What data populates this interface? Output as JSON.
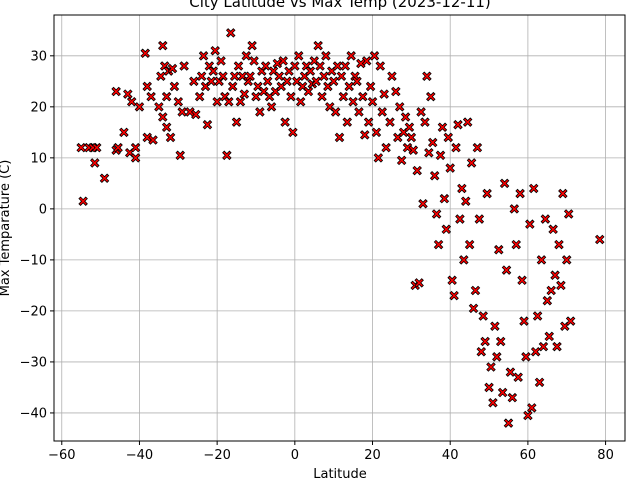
{
  "chart_data": {
    "type": "scatter",
    "title": "City Latitude vs Max Temp (2023-12-11)",
    "xlabel": "Latitude",
    "ylabel": "Max Temparature (C)",
    "xlim": [
      -62,
      85
    ],
    "ylim": [
      -45.5,
      38
    ],
    "xticks": [
      -60,
      -40,
      -20,
      0,
      20,
      40,
      60,
      80
    ],
    "yticks": [
      -40,
      -30,
      -20,
      -10,
      0,
      10,
      20,
      30
    ],
    "grid": true,
    "marker": "X",
    "marker_color": "#ff0000",
    "marker_edge_color": "#000000",
    "series": [
      {
        "points": [
          [
            -55,
            12
          ],
          [
            -54.5,
            1.5
          ],
          [
            -53,
            12
          ],
          [
            -52,
            12
          ],
          [
            -51.5,
            9
          ],
          [
            -51,
            12
          ],
          [
            -49,
            6
          ],
          [
            -46,
            23
          ],
          [
            -46,
            11.5
          ],
          [
            -45.5,
            12
          ],
          [
            -44,
            15
          ],
          [
            -43,
            22.5
          ],
          [
            -42.5,
            11
          ],
          [
            -42,
            21
          ],
          [
            -41,
            10
          ],
          [
            -41,
            12
          ],
          [
            -40,
            20
          ],
          [
            -38.5,
            30.5
          ],
          [
            -38,
            24
          ],
          [
            -38,
            14
          ],
          [
            -37,
            22
          ],
          [
            -36.5,
            13.5
          ],
          [
            -35,
            20
          ],
          [
            -34.5,
            26
          ],
          [
            -34,
            32
          ],
          [
            -34,
            18
          ],
          [
            -33.5,
            28
          ],
          [
            -33,
            16
          ],
          [
            -33,
            22
          ],
          [
            -32.5,
            27
          ],
          [
            -32,
            14
          ],
          [
            -31.5,
            27.5
          ],
          [
            -31,
            24
          ],
          [
            -30,
            21
          ],
          [
            -29.5,
            10.5
          ],
          [
            -29,
            19
          ],
          [
            -28.5,
            28
          ],
          [
            -27,
            19
          ],
          [
            -26,
            25
          ],
          [
            -25.5,
            18.5
          ],
          [
            -24.5,
            22
          ],
          [
            -24,
            26
          ],
          [
            -23.5,
            30
          ],
          [
            -23,
            24
          ],
          [
            -22.5,
            16.5
          ],
          [
            -22,
            28
          ],
          [
            -21.5,
            25
          ],
          [
            -21,
            27
          ],
          [
            -20.5,
            31
          ],
          [
            -20,
            21
          ],
          [
            -19.5,
            25
          ],
          [
            -19,
            29
          ],
          [
            -18.5,
            26
          ],
          [
            -18,
            22
          ],
          [
            -17.5,
            10.5
          ],
          [
            -17,
            21
          ],
          [
            -16.5,
            34.5
          ],
          [
            -16,
            24
          ],
          [
            -15.5,
            26
          ],
          [
            -15,
            17
          ],
          [
            -14.5,
            28
          ],
          [
            -14,
            21
          ],
          [
            -13.5,
            26
          ],
          [
            -13,
            22.5
          ],
          [
            -12.5,
            30
          ],
          [
            -12,
            25
          ],
          [
            -11.5,
            26
          ],
          [
            -11,
            32
          ],
          [
            -10.5,
            29
          ],
          [
            -10,
            22
          ],
          [
            -9.5,
            24
          ],
          [
            -9,
            19
          ],
          [
            -8.5,
            27
          ],
          [
            -8,
            23
          ],
          [
            -7.5,
            28
          ],
          [
            -7,
            25
          ],
          [
            -6.5,
            22
          ],
          [
            -6,
            20
          ],
          [
            -5.5,
            27
          ],
          [
            -5,
            23
          ],
          [
            -4.5,
            28.5
          ],
          [
            -4,
            26
          ],
          [
            -3.5,
            24
          ],
          [
            -3,
            29
          ],
          [
            -2.5,
            17
          ],
          [
            -2,
            25
          ],
          [
            -1.5,
            27
          ],
          [
            -1,
            22
          ],
          [
            -0.5,
            15
          ],
          [
            0,
            28
          ],
          [
            0.5,
            25
          ],
          [
            1,
            30
          ],
          [
            1.5,
            21
          ],
          [
            2,
            24
          ],
          [
            2.5,
            26
          ],
          [
            3,
            28
          ],
          [
            3.5,
            23
          ],
          [
            4,
            27
          ],
          [
            4.5,
            24.5
          ],
          [
            5,
            29
          ],
          [
            5.5,
            25
          ],
          [
            6,
            32
          ],
          [
            6.5,
            28
          ],
          [
            7,
            22
          ],
          [
            7.5,
            26
          ],
          [
            8,
            30
          ],
          [
            8.5,
            24
          ],
          [
            9,
            20
          ],
          [
            9.5,
            27
          ],
          [
            10,
            25
          ],
          [
            10.5,
            19
          ],
          [
            11,
            28
          ],
          [
            11.5,
            14
          ],
          [
            12,
            26
          ],
          [
            12.5,
            22
          ],
          [
            13,
            28
          ],
          [
            13.5,
            17
          ],
          [
            14,
            24
          ],
          [
            14.5,
            30
          ],
          [
            15,
            21
          ],
          [
            15.5,
            26
          ],
          [
            16,
            25
          ],
          [
            16.5,
            19
          ],
          [
            17,
            28.5
          ],
          [
            17.5,
            22
          ],
          [
            18,
            14.5
          ],
          [
            18.5,
            29
          ],
          [
            19,
            17
          ],
          [
            19.5,
            24
          ],
          [
            20,
            21
          ],
          [
            20.5,
            30
          ],
          [
            21,
            15
          ],
          [
            21.5,
            10
          ],
          [
            22,
            28
          ],
          [
            22.5,
            19
          ],
          [
            23,
            22.5
          ],
          [
            23.5,
            12
          ],
          [
            24.5,
            17
          ],
          [
            25,
            26
          ],
          [
            26,
            23
          ],
          [
            26.5,
            14
          ],
          [
            27,
            20
          ],
          [
            27.5,
            9.5
          ],
          [
            28,
            15
          ],
          [
            28.5,
            18
          ],
          [
            29,
            12
          ],
          [
            29.5,
            16
          ],
          [
            30,
            14
          ],
          [
            30.5,
            11.5
          ],
          [
            31,
            -15
          ],
          [
            31.5,
            7.5
          ],
          [
            32,
            -14.5
          ],
          [
            32.5,
            19
          ],
          [
            33,
            1
          ],
          [
            33.5,
            17
          ],
          [
            34,
            26
          ],
          [
            34.5,
            11
          ],
          [
            35,
            22
          ],
          [
            35.5,
            13
          ],
          [
            36,
            6.5
          ],
          [
            36.5,
            -1
          ],
          [
            37,
            -7
          ],
          [
            37.5,
            10.5
          ],
          [
            38,
            16
          ],
          [
            38.5,
            2
          ],
          [
            39,
            -4
          ],
          [
            39.5,
            14
          ],
          [
            40,
            8
          ],
          [
            40.5,
            -14
          ],
          [
            41,
            -17
          ],
          [
            41.5,
            12
          ],
          [
            42,
            16.5
          ],
          [
            42.5,
            -2
          ],
          [
            43,
            4
          ],
          [
            43.5,
            -10
          ],
          [
            44,
            1.5
          ],
          [
            44.5,
            17
          ],
          [
            45,
            -7
          ],
          [
            45.5,
            9
          ],
          [
            46,
            -19.5
          ],
          [
            46.5,
            -16
          ],
          [
            47,
            12
          ],
          [
            47.5,
            -2
          ],
          [
            48,
            -28
          ],
          [
            48.5,
            -21
          ],
          [
            49,
            -26
          ],
          [
            49.5,
            3
          ],
          [
            50,
            -35
          ],
          [
            50.5,
            -31
          ],
          [
            51,
            -38
          ],
          [
            51.5,
            -23
          ],
          [
            52,
            -29
          ],
          [
            52.5,
            -8
          ],
          [
            53,
            -26
          ],
          [
            53.5,
            -36
          ],
          [
            54,
            5
          ],
          [
            54.5,
            -12
          ],
          [
            55,
            -42
          ],
          [
            55.5,
            -32
          ],
          [
            56,
            -37
          ],
          [
            56.5,
            0
          ],
          [
            57,
            -7
          ],
          [
            57.5,
            -33
          ],
          [
            58,
            3
          ],
          [
            58.5,
            -14
          ],
          [
            59,
            -22
          ],
          [
            59.5,
            -29
          ],
          [
            60,
            -40.5
          ],
          [
            60.5,
            -3
          ],
          [
            61,
            -39
          ],
          [
            61.5,
            4
          ],
          [
            62,
            -28
          ],
          [
            62.5,
            -21
          ],
          [
            63,
            -34
          ],
          [
            63.5,
            -10
          ],
          [
            64,
            -27
          ],
          [
            64.5,
            -2
          ],
          [
            65,
            -18
          ],
          [
            65.5,
            -25
          ],
          [
            66,
            -16
          ],
          [
            66.5,
            -4
          ],
          [
            67,
            -13
          ],
          [
            67.5,
            -27
          ],
          [
            68,
            -7
          ],
          [
            68.5,
            -15
          ],
          [
            69,
            3
          ],
          [
            69.5,
            -23
          ],
          [
            70,
            -10
          ],
          [
            70.5,
            -1
          ],
          [
            71,
            -22
          ],
          [
            78.5,
            -6
          ]
        ]
      }
    ]
  }
}
